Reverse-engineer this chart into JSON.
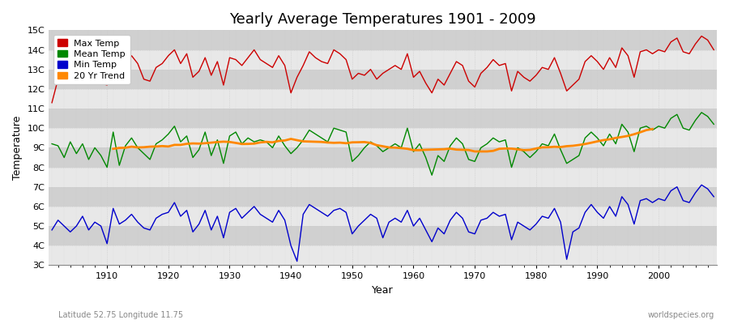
{
  "title": "Yearly Average Temperatures 1901 - 2009",
  "xlabel": "Year",
  "ylabel": "Temperature",
  "lat_lon_label": "Latitude 52.75 Longitude 11.75",
  "watermark": "worldspecies.org",
  "legend_labels": [
    "Max Temp",
    "Mean Temp",
    "Min Temp",
    "20 Yr Trend"
  ],
  "legend_colors": [
    "#cc0000",
    "#008800",
    "#0000cc",
    "#ff8800"
  ],
  "bg_color": "#ffffff",
  "plot_bg_color": "#ffffff",
  "band_color_light": "#e8e8e8",
  "band_color_dark": "#d0d0d0",
  "grid_color": "#cccccc",
  "years": [
    1901,
    1902,
    1903,
    1904,
    1905,
    1906,
    1907,
    1908,
    1909,
    1910,
    1911,
    1912,
    1913,
    1914,
    1915,
    1916,
    1917,
    1918,
    1919,
    1920,
    1921,
    1922,
    1923,
    1924,
    1925,
    1926,
    1927,
    1928,
    1929,
    1930,
    1931,
    1932,
    1933,
    1934,
    1935,
    1936,
    1937,
    1938,
    1939,
    1940,
    1941,
    1942,
    1943,
    1944,
    1945,
    1946,
    1947,
    1948,
    1949,
    1950,
    1951,
    1952,
    1953,
    1954,
    1955,
    1956,
    1957,
    1958,
    1959,
    1960,
    1961,
    1962,
    1963,
    1964,
    1965,
    1966,
    1967,
    1968,
    1969,
    1970,
    1971,
    1972,
    1973,
    1974,
    1975,
    1976,
    1977,
    1978,
    1979,
    1980,
    1981,
    1982,
    1983,
    1984,
    1985,
    1986,
    1987,
    1988,
    1989,
    1990,
    1991,
    1992,
    1993,
    1994,
    1995,
    1996,
    1997,
    1998,
    1999,
    2000,
    2001,
    2002,
    2003,
    2004,
    2005,
    2006,
    2007,
    2008,
    2009
  ],
  "max_temp": [
    11.3,
    12.5,
    12.8,
    12.3,
    12.7,
    13.0,
    12.5,
    12.8,
    12.3,
    12.2,
    13.6,
    12.9,
    13.2,
    13.7,
    13.3,
    12.5,
    12.4,
    13.1,
    13.3,
    13.7,
    14.0,
    13.3,
    13.8,
    12.6,
    12.9,
    13.6,
    12.7,
    13.4,
    12.2,
    13.6,
    13.5,
    13.2,
    13.6,
    14.0,
    13.5,
    13.3,
    13.1,
    13.7,
    13.2,
    11.8,
    12.6,
    13.2,
    13.9,
    13.6,
    13.4,
    13.3,
    14.0,
    13.8,
    13.5,
    12.5,
    12.8,
    12.7,
    13.0,
    12.5,
    12.8,
    13.0,
    13.2,
    13.0,
    13.8,
    12.6,
    12.9,
    12.3,
    11.8,
    12.5,
    12.2,
    12.8,
    13.4,
    13.2,
    12.4,
    12.1,
    12.8,
    13.1,
    13.5,
    13.2,
    13.3,
    11.9,
    12.9,
    12.6,
    12.4,
    12.7,
    13.1,
    13.0,
    13.6,
    12.8,
    11.9,
    12.2,
    12.5,
    13.4,
    13.7,
    13.4,
    13.0,
    13.6,
    13.1,
    14.1,
    13.7,
    12.6,
    13.9,
    14.0,
    13.8,
    14.0,
    13.9,
    14.4,
    14.6,
    13.9,
    13.8,
    14.3,
    14.7,
    14.5,
    14.0
  ],
  "mean_temp": [
    9.2,
    9.1,
    8.5,
    9.3,
    8.7,
    9.2,
    8.4,
    9.0,
    8.6,
    8.0,
    9.8,
    8.1,
    9.1,
    9.5,
    9.0,
    8.7,
    8.4,
    9.2,
    9.4,
    9.7,
    10.1,
    9.3,
    9.6,
    8.5,
    8.9,
    9.8,
    8.6,
    9.4,
    8.2,
    9.6,
    9.8,
    9.2,
    9.5,
    9.3,
    9.4,
    9.3,
    9.0,
    9.6,
    9.1,
    8.7,
    9.0,
    9.4,
    9.9,
    9.7,
    9.5,
    9.3,
    10.0,
    9.9,
    9.8,
    8.3,
    8.6,
    9.0,
    9.3,
    9.1,
    8.8,
    9.0,
    9.2,
    9.0,
    10.0,
    8.8,
    9.2,
    8.5,
    7.6,
    8.6,
    8.3,
    9.1,
    9.5,
    9.2,
    8.4,
    8.3,
    9.0,
    9.2,
    9.5,
    9.3,
    9.4,
    8.0,
    9.0,
    8.8,
    8.5,
    8.8,
    9.2,
    9.1,
    9.7,
    8.9,
    8.2,
    8.4,
    8.6,
    9.5,
    9.8,
    9.5,
    9.1,
    9.7,
    9.2,
    10.2,
    9.8,
    8.8,
    10.0,
    10.1,
    9.9,
    10.1,
    10.0,
    10.5,
    10.7,
    10.0,
    9.9,
    10.4,
    10.8,
    10.6,
    10.2
  ],
  "min_temp": [
    4.8,
    5.3,
    5.0,
    4.7,
    5.0,
    5.5,
    4.8,
    5.2,
    5.0,
    4.1,
    5.9,
    5.1,
    5.3,
    5.6,
    5.2,
    4.9,
    4.8,
    5.4,
    5.6,
    5.7,
    6.2,
    5.5,
    5.8,
    4.7,
    5.1,
    5.8,
    4.8,
    5.5,
    4.4,
    5.7,
    5.9,
    5.4,
    5.7,
    6.0,
    5.6,
    5.4,
    5.2,
    5.8,
    5.3,
    4.0,
    3.2,
    5.6,
    6.1,
    5.9,
    5.7,
    5.5,
    5.8,
    5.9,
    5.7,
    4.6,
    5.0,
    5.3,
    5.6,
    5.4,
    4.4,
    5.2,
    5.4,
    5.2,
    5.8,
    5.0,
    5.4,
    4.8,
    4.2,
    4.9,
    4.6,
    5.3,
    5.7,
    5.4,
    4.7,
    4.6,
    5.3,
    5.4,
    5.7,
    5.5,
    5.6,
    4.3,
    5.2,
    5.0,
    4.8,
    5.1,
    5.5,
    5.4,
    5.9,
    5.2,
    3.3,
    4.7,
    4.9,
    5.7,
    6.1,
    5.7,
    5.4,
    6.0,
    5.5,
    6.5,
    6.1,
    5.1,
    6.3,
    6.4,
    6.2,
    6.4,
    6.3,
    6.8,
    7.0,
    6.3,
    6.2,
    6.7,
    7.1,
    6.9,
    6.5
  ],
  "ylim_min": 3,
  "ylim_max": 15,
  "yticks": [
    3,
    4,
    5,
    6,
    7,
    8,
    9,
    10,
    11,
    12,
    13,
    14,
    15
  ],
  "ytick_labels": [
    "3C",
    "4C",
    "5C",
    "6C",
    "7C",
    "8C",
    "9C",
    "10C",
    "11C",
    "12C",
    "13C",
    "14C",
    "15C"
  ],
  "xticks": [
    1910,
    1920,
    1930,
    1940,
    1950,
    1960,
    1970,
    1980,
    1990,
    2000
  ],
  "title_fontsize": 13
}
